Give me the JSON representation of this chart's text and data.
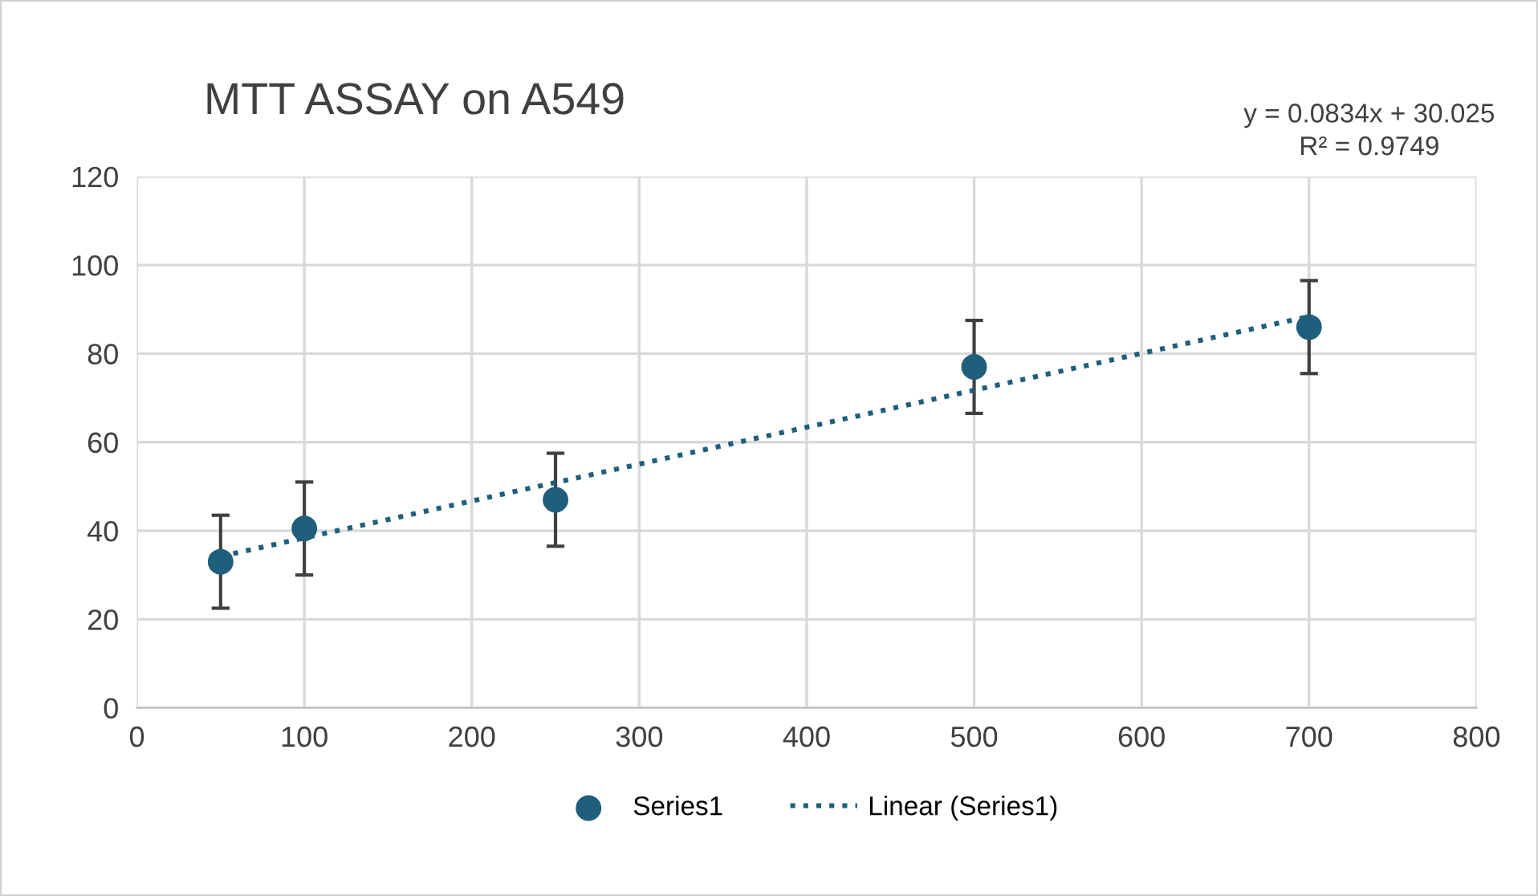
{
  "chart_data": {
    "type": "scatter",
    "title": "MTT ASSAY on A549",
    "annotations": [
      "y = 0.0834x + 30.025\nR² = 0.9749"
    ],
    "x": [
      50,
      100,
      250,
      500,
      700
    ],
    "series": [
      {
        "name": "Series1",
        "color": "#1f5f7c",
        "values": [
          33,
          40.5,
          47,
          77,
          86
        ],
        "errors": [
          10.5,
          10.5,
          10.5,
          10.5,
          10.5
        ],
        "marker": "circle"
      },
      {
        "name": "Linear (Series1)",
        "type": "line",
        "color": "#1f5f7c",
        "x": [
          50,
          700
        ],
        "values": [
          34.2,
          88.4
        ],
        "line_style": "dotted",
        "marker": "none"
      }
    ],
    "xlim": [
      0,
      800
    ],
    "xticks": [
      0,
      100,
      200,
      300,
      400,
      500,
      600,
      700,
      800
    ],
    "ylim": [
      0,
      120
    ],
    "yticks": [
      0,
      20,
      40,
      60,
      80,
      100,
      120
    ],
    "grid": true,
    "legend": "bottom"
  }
}
